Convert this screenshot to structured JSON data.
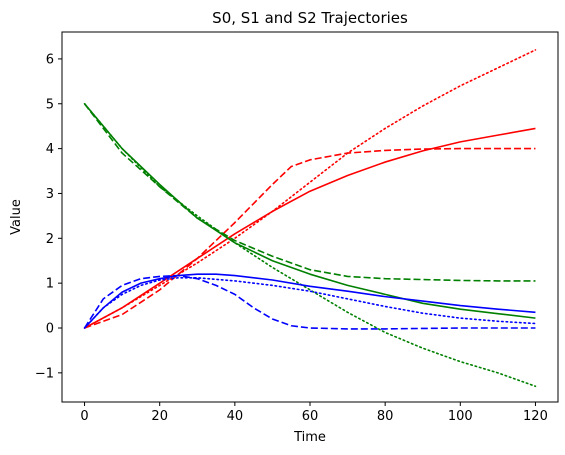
{
  "chart_data": {
    "type": "line",
    "title": "S0, S1 and S2 Trajectories",
    "xlabel": "Time",
    "ylabel": "Value",
    "xlim": [
      -6,
      126
    ],
    "ylim": [
      -1.65,
      6.6
    ],
    "xticks": [
      0,
      20,
      40,
      60,
      80,
      100,
      120
    ],
    "yticks": [
      -1,
      0,
      1,
      2,
      3,
      4,
      5,
      6
    ],
    "ytick_labels": [
      "−1",
      "0",
      "1",
      "2",
      "3",
      "4",
      "5",
      "6"
    ],
    "grid": false,
    "legend": "none",
    "series": [
      {
        "color": "#ff0000",
        "style": "solid",
        "x": [
          0,
          10,
          20,
          30,
          40,
          50,
          60,
          70,
          80,
          90,
          100,
          110,
          120
        ],
        "y": [
          0,
          0.45,
          1.0,
          1.55,
          2.1,
          2.6,
          3.05,
          3.4,
          3.7,
          3.95,
          4.15,
          4.3,
          4.45
        ]
      },
      {
        "color": "#ff0000",
        "style": "dashed",
        "x": [
          0,
          10,
          20,
          30,
          40,
          50,
          55,
          60,
          70,
          80,
          90,
          100,
          110,
          120
        ],
        "y": [
          0,
          0.3,
          0.85,
          1.55,
          2.35,
          3.2,
          3.6,
          3.75,
          3.9,
          3.96,
          3.99,
          4.0,
          4.0,
          4.0
        ]
      },
      {
        "color": "#ff0000",
        "style": "dotted",
        "x": [
          0,
          10,
          20,
          30,
          40,
          50,
          60,
          70,
          80,
          90,
          100,
          110,
          120
        ],
        "y": [
          0,
          0.45,
          0.95,
          1.45,
          2.0,
          2.6,
          3.25,
          3.9,
          4.45,
          4.95,
          5.4,
          5.8,
          6.2
        ]
      },
      {
        "color": "#008000",
        "style": "solid",
        "x": [
          0,
          10,
          20,
          30,
          40,
          50,
          60,
          70,
          80,
          90,
          100,
          110,
          120
        ],
        "y": [
          5.0,
          4.0,
          3.2,
          2.45,
          1.9,
          1.5,
          1.2,
          0.95,
          0.75,
          0.55,
          0.42,
          0.32,
          0.22
        ]
      },
      {
        "color": "#008000",
        "style": "dashed",
        "x": [
          0,
          10,
          20,
          30,
          40,
          50,
          60,
          70,
          80,
          90,
          100,
          110,
          120
        ],
        "y": [
          5.0,
          3.9,
          3.15,
          2.45,
          1.95,
          1.6,
          1.3,
          1.15,
          1.1,
          1.08,
          1.06,
          1.05,
          1.05
        ]
      },
      {
        "color": "#008000",
        "style": "dotted",
        "x": [
          0,
          10,
          20,
          30,
          40,
          50,
          60,
          70,
          80,
          90,
          100,
          110,
          120
        ],
        "y": [
          5.0,
          4.0,
          3.15,
          2.5,
          1.9,
          1.35,
          0.85,
          0.35,
          -0.1,
          -0.45,
          -0.75,
          -1.0,
          -1.3
        ]
      },
      {
        "color": "#0000ff",
        "style": "solid",
        "x": [
          0,
          5,
          10,
          15,
          20,
          25,
          30,
          35,
          40,
          50,
          60,
          70,
          80,
          90,
          100,
          110,
          120
        ],
        "y": [
          0,
          0.45,
          0.8,
          1.0,
          1.1,
          1.17,
          1.2,
          1.2,
          1.17,
          1.07,
          0.93,
          0.82,
          0.7,
          0.6,
          0.5,
          0.42,
          0.35
        ]
      },
      {
        "color": "#0000ff",
        "style": "dashed",
        "x": [
          0,
          5,
          10,
          15,
          20,
          25,
          30,
          35,
          40,
          45,
          50,
          55,
          60,
          70,
          80,
          90,
          100,
          110,
          120
        ],
        "y": [
          0,
          0.65,
          0.95,
          1.1,
          1.15,
          1.17,
          1.1,
          0.95,
          0.75,
          0.45,
          0.2,
          0.05,
          0.0,
          -0.02,
          -0.02,
          -0.01,
          0.0,
          0.0,
          0.0
        ]
      },
      {
        "color": "#0000ff",
        "style": "dotted",
        "x": [
          0,
          5,
          10,
          15,
          20,
          25,
          30,
          40,
          50,
          60,
          70,
          80,
          90,
          100,
          110,
          120
        ],
        "y": [
          0,
          0.45,
          0.75,
          0.95,
          1.07,
          1.12,
          1.12,
          1.05,
          0.95,
          0.82,
          0.65,
          0.48,
          0.33,
          0.22,
          0.15,
          0.1
        ]
      }
    ]
  }
}
